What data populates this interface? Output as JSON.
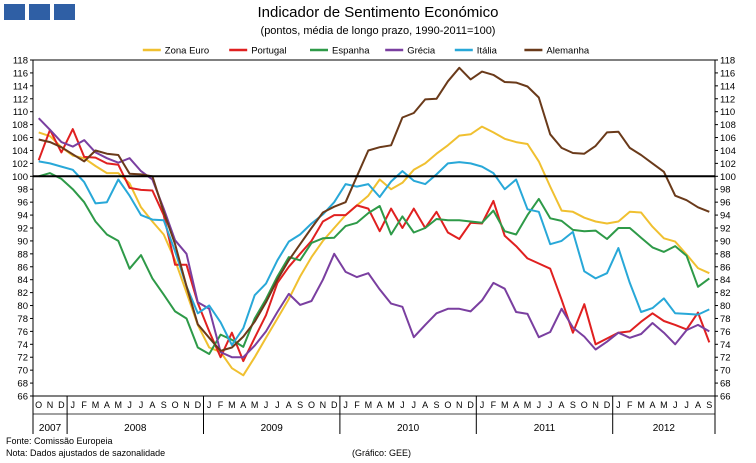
{
  "title": "Indicador de Sentimento Económico",
  "subtitle": "(pontos, média de longo prazo, 1990-2011=100)",
  "footer": {
    "source": "Fonte: Comissão Europeia",
    "note": "Nota: Dados ajustados de sazonalidade",
    "credit": "(Gráfico: GEE)"
  },
  "chart_data": {
    "type": "line",
    "title": "Indicador de Sentimento Económico",
    "subtitle": "(pontos, média de longo prazo, 1990-2011=100)",
    "ylim": [
      66,
      118
    ],
    "yticks": [
      66,
      68,
      70,
      72,
      74,
      76,
      78,
      80,
      82,
      84,
      86,
      88,
      90,
      92,
      94,
      96,
      98,
      100,
      102,
      104,
      106,
      108,
      110,
      112,
      114,
      116,
      118
    ],
    "reference_line": 100,
    "legend_position": "top-center",
    "x": [
      "O",
      "N",
      "D",
      "J",
      "F",
      "M",
      "A",
      "M",
      "J",
      "J",
      "A",
      "S",
      "O",
      "N",
      "D",
      "J",
      "F",
      "M",
      "A",
      "M",
      "J",
      "J",
      "A",
      "S",
      "O",
      "N",
      "D",
      "J",
      "F",
      "M",
      "A",
      "M",
      "J",
      "J",
      "A",
      "S",
      "O",
      "N",
      "D",
      "J",
      "F",
      "M",
      "A",
      "M",
      "J",
      "J",
      "A",
      "S",
      "O",
      "N",
      "D",
      "J",
      "F",
      "M",
      "A",
      "M",
      "J",
      "J",
      "A",
      "S"
    ],
    "years": [
      {
        "label": "2007",
        "from": 0,
        "to": 3
      },
      {
        "label": "2008",
        "from": 3,
        "to": 15
      },
      {
        "label": "2009",
        "from": 15,
        "to": 27
      },
      {
        "label": "2010",
        "from": 27,
        "to": 39
      },
      {
        "label": "2011",
        "from": 39,
        "to": 51
      },
      {
        "label": "2012",
        "from": 51,
        "to": 60
      }
    ],
    "series": [
      {
        "name": "Zona Euro",
        "color": "#f0c030",
        "values": [
          106.8,
          106.2,
          104.5,
          103.2,
          102.8,
          101.6,
          100.5,
          100.5,
          98.9,
          95.2,
          93.0,
          91.0,
          87.0,
          82.0,
          77.0,
          73.5,
          72.8,
          70.3,
          69.2,
          72.0,
          75.0,
          78.0,
          81.0,
          84.5,
          87.5,
          90.0,
          92.0,
          94.0,
          95.5,
          97.0,
          99.5,
          98.0,
          99.0,
          101.0,
          102.0,
          103.5,
          104.8,
          106.3,
          106.5,
          107.7,
          106.8,
          105.8,
          105.3,
          105.0,
          102.3,
          98.4,
          94.7,
          94.5,
          93.6,
          93.0,
          92.7,
          93.0,
          94.5,
          94.4,
          92.2,
          90.4,
          89.9,
          87.9,
          85.8,
          85.0
        ]
      },
      {
        "name": "Portugal",
        "color": "#e02020",
        "values": [
          102.5,
          107.2,
          103.7,
          107.3,
          103.0,
          102.9,
          102.0,
          101.8,
          98.2,
          97.9,
          97.8,
          94.0,
          86.3,
          86.3,
          80.4,
          76.0,
          72.0,
          75.8,
          71.4,
          75.0,
          78.5,
          83.5,
          86.0,
          88.0,
          90.0,
          93.0,
          94.0,
          94.0,
          95.5,
          95.0,
          91.5,
          95.0,
          92.0,
          95.0,
          92.0,
          94.5,
          91.3,
          90.3,
          92.8,
          92.7,
          96.2,
          90.8,
          89.2,
          87.3,
          86.5,
          85.7,
          80.9,
          75.8,
          80.2,
          74.0,
          74.9,
          75.8,
          76.0,
          77.5,
          78.8,
          77.6,
          77.0,
          76.3,
          78.9,
          74.3
        ]
      },
      {
        "name": "Espanha",
        "color": "#2e9a48",
        "values": [
          100.0,
          100.5,
          99.6,
          98.0,
          96.0,
          93.0,
          91.0,
          90.0,
          85.7,
          87.8,
          84.2,
          81.7,
          79.1,
          78.0,
          73.5,
          72.5,
          75.5,
          74.7,
          73.6,
          78.0,
          81.0,
          84.5,
          87.5,
          87.0,
          89.7,
          90.4,
          90.5,
          92.3,
          92.8,
          94.3,
          95.4,
          91.0,
          93.8,
          91.3,
          92.0,
          93.4,
          93.2,
          93.2,
          93.0,
          92.8,
          94.7,
          91.5,
          91.0,
          94.0,
          96.5,
          93.5,
          93.1,
          91.7,
          91.5,
          91.6,
          90.3,
          92.0,
          92.0,
          90.5,
          89.0,
          88.3,
          89.2,
          87.7,
          82.9,
          84.2
        ]
      },
      {
        "name": "Grécia",
        "color": "#7a3fa0",
        "values": [
          109.0,
          107.2,
          105.3,
          104.6,
          105.6,
          103.7,
          102.8,
          102.1,
          102.8,
          100.8,
          99.5,
          95.0,
          90.1,
          88.0,
          80.5,
          79.5,
          72.8,
          72.0,
          72.0,
          73.8,
          76.0,
          79.0,
          81.8,
          80.1,
          80.7,
          84.0,
          88.0,
          85.2,
          84.4,
          85.0,
          82.5,
          80.3,
          79.8,
          75.1,
          77.0,
          78.8,
          79.5,
          79.5,
          79.1,
          80.8,
          83.5,
          82.6,
          79.0,
          78.7,
          75.1,
          75.9,
          79.5,
          76.6,
          75.2,
          73.2,
          74.4,
          75.8,
          75.0,
          75.6,
          77.3,
          75.8,
          74.0,
          76.2,
          77.0,
          76.0
        ]
      },
      {
        "name": "Itália",
        "color": "#28a8d8",
        "values": [
          102.3,
          102.0,
          101.5,
          101.0,
          99.1,
          95.8,
          96.0,
          99.5,
          97.0,
          94.0,
          93.3,
          93.2,
          88.4,
          83.0,
          78.8,
          80.0,
          77.4,
          73.9,
          76.5,
          81.6,
          83.4,
          87.0,
          89.9,
          91.0,
          92.7,
          94.1,
          96.0,
          98.8,
          98.4,
          98.8,
          96.8,
          99.2,
          100.8,
          99.3,
          98.8,
          100.3,
          102.0,
          102.2,
          102.0,
          101.5,
          100.5,
          98.0,
          99.5,
          94.9,
          94.5,
          89.5,
          90.0,
          91.4,
          85.3,
          84.2,
          85.0,
          88.9,
          83.5,
          79.0,
          79.6,
          81.1,
          78.8,
          78.7,
          78.6,
          79.4
        ]
      },
      {
        "name": "Alemanha",
        "color": "#6a3a1a",
        "values": [
          105.7,
          105.3,
          104.5,
          103.4,
          102.3,
          104.0,
          103.5,
          103.3,
          100.4,
          100.3,
          100.0,
          94.5,
          89.5,
          83.0,
          77.1,
          75.0,
          73.0,
          73.5,
          75.2,
          77.5,
          80.5,
          84.0,
          87.0,
          89.5,
          92.0,
          94.4,
          95.3,
          96.0,
          100.0,
          104.0,
          104.5,
          104.8,
          109.1,
          109.8,
          111.9,
          112.0,
          114.7,
          116.8,
          115.0,
          116.2,
          115.7,
          114.6,
          114.5,
          113.9,
          112.2,
          106.5,
          104.4,
          103.6,
          103.5,
          104.7,
          106.8,
          106.9,
          104.4,
          103.3,
          102.0,
          100.7,
          97.0,
          96.3,
          95.2,
          94.5
        ]
      }
    ]
  }
}
